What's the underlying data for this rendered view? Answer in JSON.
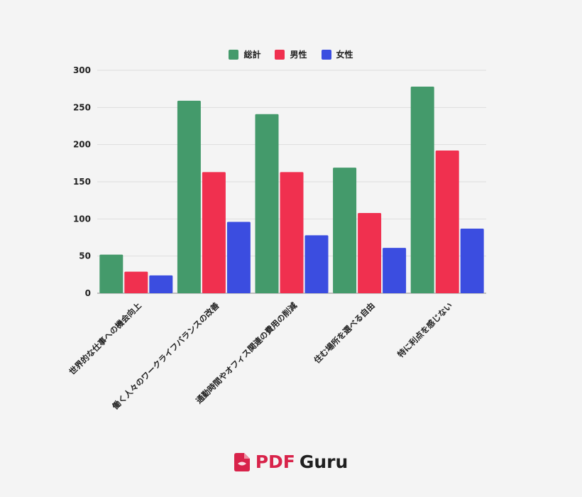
{
  "colors": {
    "total": "#449a6b",
    "male": "#f0304f",
    "female": "#3b4de0",
    "grid": "#dddddd",
    "axis": "#8a8a8a",
    "background": "#f4f4f4"
  },
  "brand": {
    "pdf": "PDF",
    "guru": "Guru",
    "icon": "pdf-file-icon"
  },
  "chart_data": {
    "type": "bar",
    "title": "",
    "xlabel": "",
    "ylabel": "",
    "ylim": [
      0,
      300
    ],
    "yticks": [
      0,
      50,
      100,
      150,
      200,
      250,
      300
    ],
    "grid": true,
    "legend_position": "top-center",
    "categories": [
      "世界的な仕事への機会向上",
      "働く人々のワークライフバランスの改善",
      "通勤時間やオフィス関連の費用の削減",
      "住む場所を選べる自由",
      "特に利点を感じない"
    ],
    "series": [
      {
        "name": "総計",
        "color": "#449a6b",
        "values": [
          52,
          259,
          241,
          169,
          278
        ]
      },
      {
        "name": "男性",
        "color": "#f0304f",
        "values": [
          29,
          163,
          163,
          108,
          192
        ]
      },
      {
        "name": "女性",
        "color": "#3b4de0",
        "values": [
          24,
          96,
          78,
          61,
          87
        ]
      }
    ]
  }
}
